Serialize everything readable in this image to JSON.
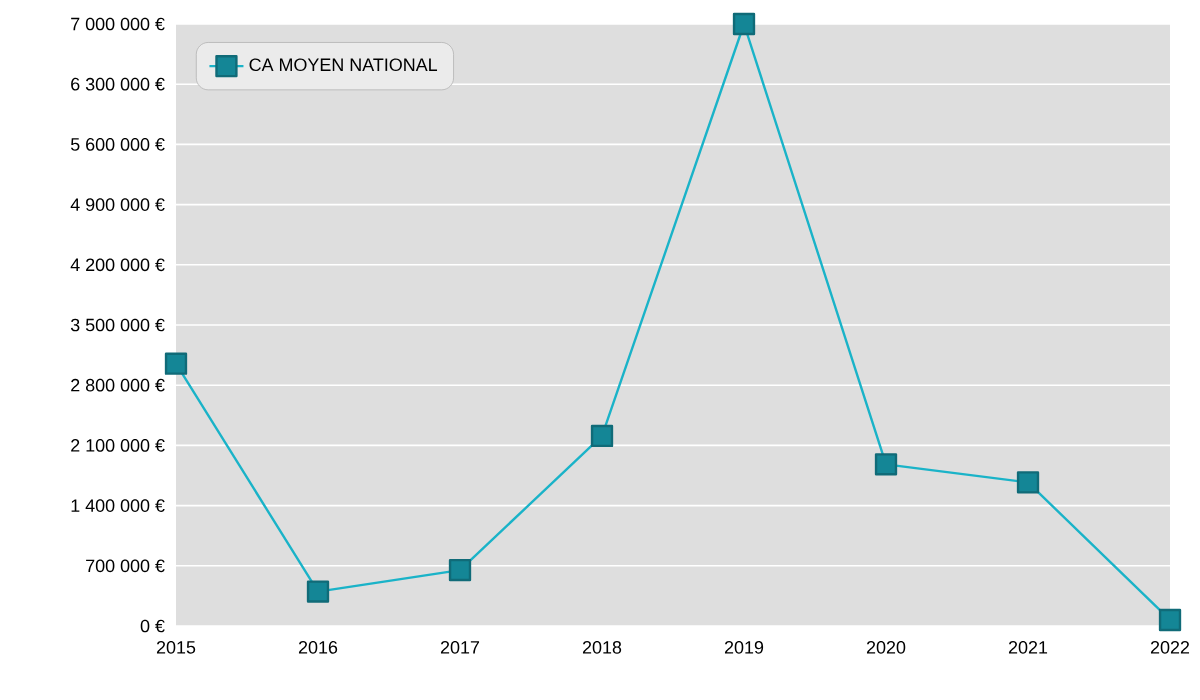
{
  "chart_data": {
    "type": "line",
    "x": [
      2015,
      2016,
      2017,
      2018,
      2019,
      2020,
      2021,
      2022
    ],
    "series": [
      {
        "name": "CA MOYEN NATIONAL",
        "color": "#1ab3c8",
        "values": [
          3050000,
          400000,
          650000,
          2210000,
          7000000,
          1880000,
          1670000,
          70000
        ]
      }
    ],
    "xlim": [
      2015,
      2022
    ],
    "xticks": [
      2015,
      2016,
      2017,
      2018,
      2019,
      2020,
      2021,
      2022
    ],
    "ylim": [
      0,
      7000000
    ],
    "yticks": [
      {
        "value": 0,
        "label": "0 €"
      },
      {
        "value": 700000,
        "label": "700 000 €"
      },
      {
        "value": 1400000,
        "label": "1 400 000 €"
      },
      {
        "value": 2100000,
        "label": "2 100 000 €"
      },
      {
        "value": 2800000,
        "label": "2 800 000 €"
      },
      {
        "value": 3500000,
        "label": "3 500 000 €"
      },
      {
        "value": 4200000,
        "label": "4 200 000 €"
      },
      {
        "value": 4900000,
        "label": "4 900 000 €"
      },
      {
        "value": 5600000,
        "label": "5 600 000 €"
      },
      {
        "value": 6300000,
        "label": "6 300 000 €"
      },
      {
        "value": 7000000,
        "label": "7 000 000 €"
      }
    ],
    "grid": "y",
    "legend": "top left",
    "marker": "square",
    "line_style": "solid"
  }
}
